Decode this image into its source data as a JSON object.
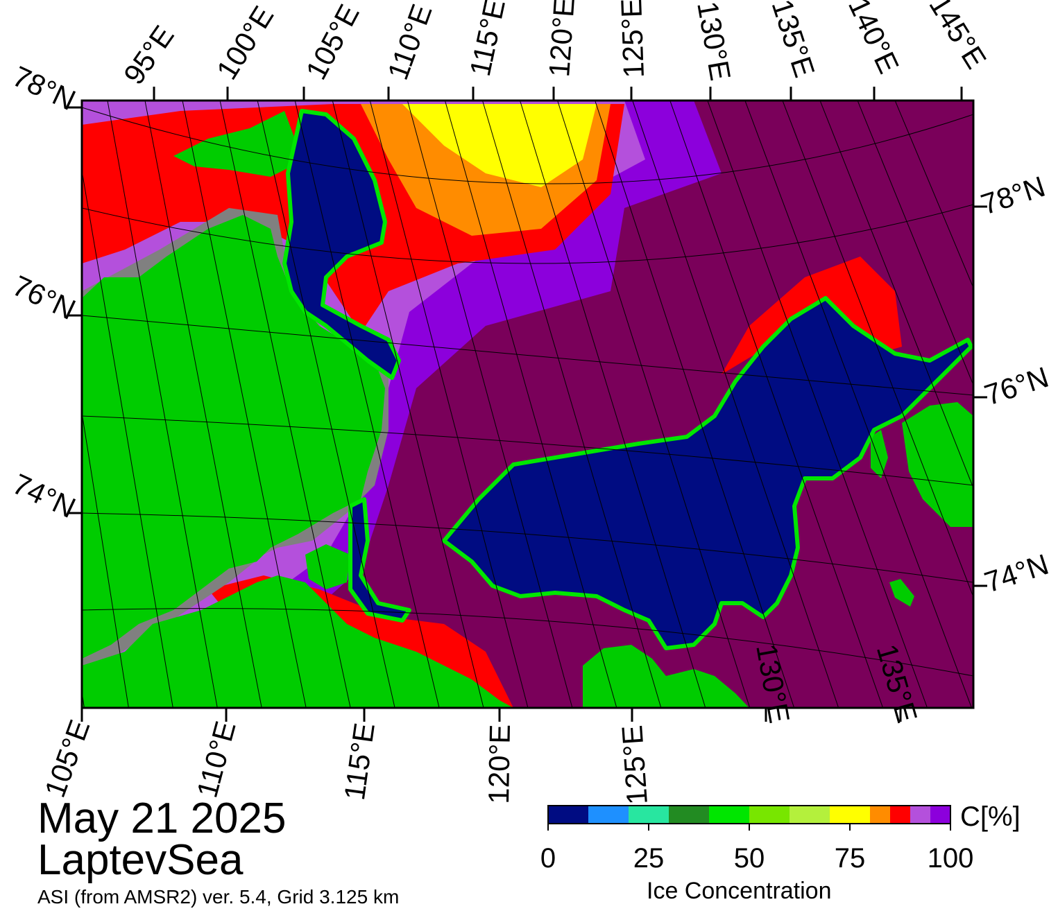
{
  "date": "May 21 2025",
  "region": "LaptevSea",
  "source": "ASI (from AMSR2) ver. 5.4,  Grid 3.125 km",
  "top_lon_labels": [
    "95°E",
    "100°E",
    "105°E",
    "110°E",
    "115°E",
    "120°E",
    "125°E",
    "130°E",
    "135°E",
    "140°E",
    "145°E"
  ],
  "bottom_lon_labels": [
    "105°E",
    "110°E",
    "115°E",
    "120°E",
    "125°E",
    "130°E",
    "135°E"
  ],
  "left_lat_labels": [
    "78°N",
    "76°N",
    "74°N"
  ],
  "right_lat_labels": [
    "78°N",
    "76°N",
    "74°N"
  ],
  "colorbar": {
    "title": "Ice Concentration",
    "unit": "C[%]",
    "tick_labels": [
      "0",
      "25",
      "50",
      "75",
      "100"
    ],
    "tick_values": [
      0,
      25,
      50,
      75,
      100
    ],
    "bins": [
      {
        "from": 0,
        "to": 10,
        "color": "#000c82"
      },
      {
        "from": 10,
        "to": 20,
        "color": "#1e90ff"
      },
      {
        "from": 20,
        "to": 30,
        "color": "#28e6a0"
      },
      {
        "from": 30,
        "to": 40,
        "color": "#228b22"
      },
      {
        "from": 40,
        "to": 50,
        "color": "#00e600"
      },
      {
        "from": 50,
        "to": 60,
        "color": "#78e600"
      },
      {
        "from": 60,
        "to": 70,
        "color": "#b4f03c"
      },
      {
        "from": 70,
        "to": 80,
        "color": "#ffff00"
      },
      {
        "from": 80,
        "to": 85,
        "color": "#ff8c00"
      },
      {
        "from": 85,
        "to": 90,
        "color": "#ff0000"
      },
      {
        "from": 90,
        "to": 95,
        "color": "#b450dc"
      },
      {
        "from": 95,
        "to": 100,
        "color": "#8c00dc"
      }
    ]
  },
  "colors": {
    "land": "#00cc00",
    "coast_gray": "#808080",
    "open_water": "#000c82",
    "full_ice": "#7a005a",
    "graticule": "#000000"
  }
}
